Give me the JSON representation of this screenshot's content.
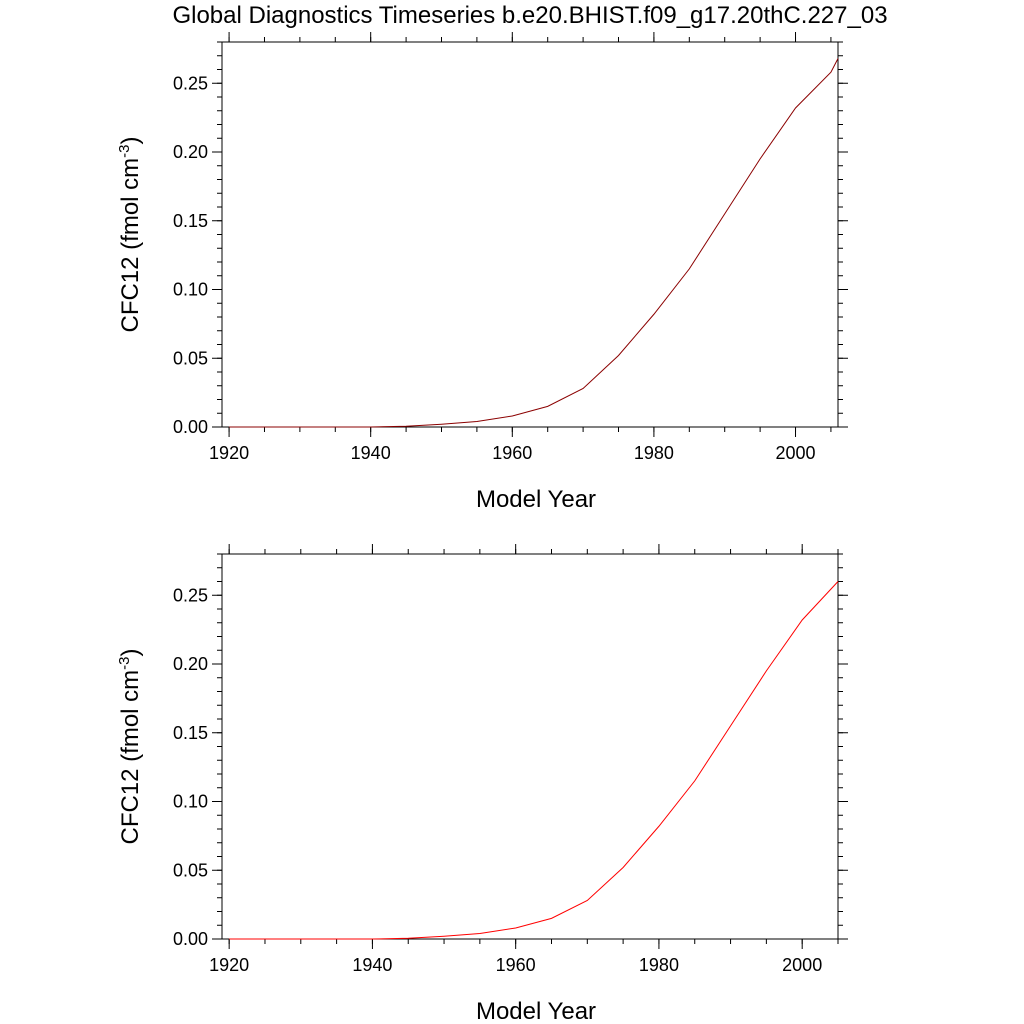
{
  "title": "Global Diagnostics Timeseries b.e20.BHIST.f09_g17.20thC.227_03",
  "colors": {
    "series_top": "#8b0000",
    "series_bottom": "#ff0000",
    "axis": "#000000"
  },
  "chart_data": [
    {
      "type": "line",
      "xlabel": "Model Year",
      "ylabel": "CFC12 (fmol cm",
      "ylabel_sup": "-3",
      "ylabel_close": ")",
      "xlim": [
        1919,
        2006
      ],
      "ylim": [
        0,
        0.28
      ],
      "xticks": [
        1920,
        1940,
        1960,
        1980,
        2000
      ],
      "xtick_labels": [
        "1920",
        "1940",
        "1960",
        "1980",
        "2000"
      ],
      "yticks": [
        0,
        0.05,
        0.1,
        0.15,
        0.2,
        0.25
      ],
      "ytick_labels": [
        "0.00",
        "0.05",
        "0.10",
        "0.15",
        "0.20",
        "0.25"
      ],
      "series": [
        {
          "name": "CFC12",
          "x": [
            1920,
            1930,
            1940,
            1945,
            1950,
            1955,
            1960,
            1965,
            1970,
            1975,
            1980,
            1985,
            1990,
            1995,
            2000,
            2005,
            2006
          ],
          "values": [
            0,
            0,
            0,
            0.0005,
            0.002,
            0.004,
            0.008,
            0.015,
            0.028,
            0.052,
            0.082,
            0.115,
            0.155,
            0.195,
            0.232,
            0.258,
            0.268
          ]
        }
      ]
    },
    {
      "type": "line",
      "xlabel": "Model Year",
      "ylabel": "CFC12 (fmol cm",
      "ylabel_sup": "-3",
      "ylabel_close": ")",
      "xlim": [
        1919,
        2005
      ],
      "ylim": [
        0,
        0.28
      ],
      "xticks": [
        1920,
        1940,
        1960,
        1980,
        2000
      ],
      "xtick_labels": [
        "1920",
        "1940",
        "1960",
        "1980",
        "2000"
      ],
      "yticks": [
        0,
        0.05,
        0.1,
        0.15,
        0.2,
        0.25
      ],
      "ytick_labels": [
        "0.00",
        "0.05",
        "0.10",
        "0.15",
        "0.20",
        "0.25"
      ],
      "series": [
        {
          "name": "CFC12",
          "x": [
            1920,
            1930,
            1940,
            1945,
            1950,
            1955,
            1960,
            1965,
            1970,
            1975,
            1980,
            1985,
            1990,
            1995,
            2000,
            2005
          ],
          "values": [
            0,
            0,
            0,
            0.0005,
            0.002,
            0.004,
            0.008,
            0.015,
            0.028,
            0.052,
            0.082,
            0.115,
            0.155,
            0.195,
            0.232,
            0.26
          ]
        }
      ]
    }
  ]
}
